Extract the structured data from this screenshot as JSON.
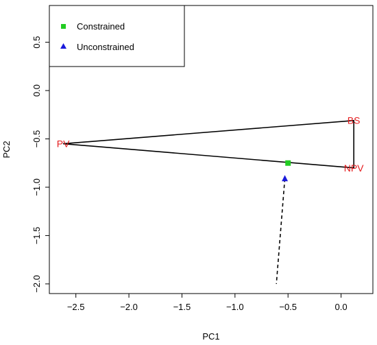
{
  "chart_data": {
    "type": "scatter",
    "title": "",
    "xlabel": "PC1",
    "ylabel": "PC2",
    "xlim": [
      -2.75,
      0.3
    ],
    "ylim": [
      -2.1,
      0.88
    ],
    "xticks": [
      -2.5,
      -2.0,
      -1.5,
      -1.0,
      -0.5,
      0.0
    ],
    "xtick_labels": [
      "−2.5",
      "−2.0",
      "−1.5",
      "−1.0",
      "−0.5",
      "0.0"
    ],
    "yticks": [
      0.5,
      0.0,
      -0.5,
      -1.0,
      -1.5,
      -2.0
    ],
    "ytick_labels": [
      "0.5",
      "0.0",
      "−0.5",
      "−1.0",
      "−1.5",
      "−2.0"
    ],
    "grid": false,
    "legend_position": "top-left",
    "vertices": [
      {
        "label": "PV",
        "x": -2.62,
        "y": -0.55
      },
      {
        "label": "BS",
        "x": 0.12,
        "y": -0.31
      },
      {
        "label": "NPV",
        "x": 0.12,
        "y": -0.8
      }
    ],
    "series": [
      {
        "name": "Constrained",
        "x": [
          -0.5
        ],
        "y": [
          -0.75
        ],
        "marker": "square",
        "color": "#22cc22"
      },
      {
        "name": "Unconstrained",
        "x": [
          -0.53
        ],
        "y": [
          -0.91
        ],
        "marker": "triangle",
        "color": "#1a1adb"
      }
    ],
    "dashed_line": {
      "x": [
        -0.53,
        -0.61
      ],
      "y": [
        -0.91,
        -2.0
      ]
    }
  }
}
